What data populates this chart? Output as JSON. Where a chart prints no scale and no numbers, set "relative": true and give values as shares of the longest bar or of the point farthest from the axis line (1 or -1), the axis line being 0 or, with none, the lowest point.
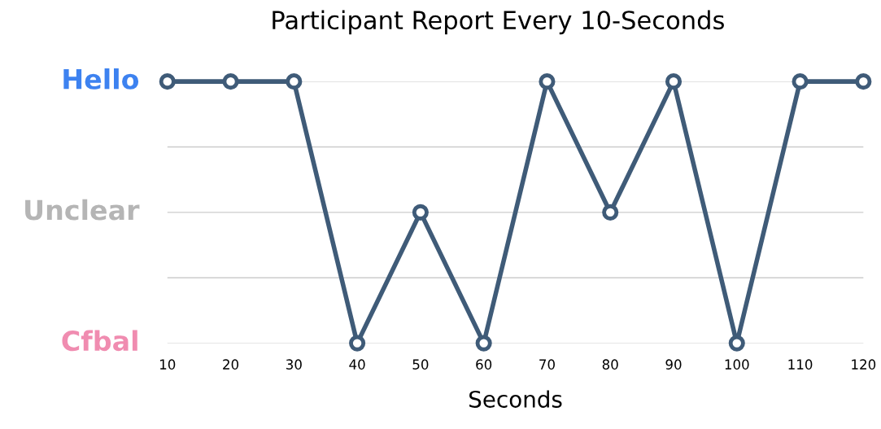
{
  "chart_data": {
    "type": "line",
    "title": "Participant Report Every 10-Seconds",
    "xlabel": "Seconds",
    "x": [
      10,
      20,
      30,
      40,
      50,
      60,
      70,
      80,
      90,
      100,
      110,
      120
    ],
    "series": [
      {
        "color": "#3f5b78",
        "values": [
          1,
          1,
          1,
          0,
          0.5,
          0,
          1,
          0.5,
          1,
          0,
          1,
          1
        ]
      }
    ],
    "relative": true,
    "xlim": [
      10,
      120
    ],
    "xticks": [
      10,
      20,
      30,
      40,
      50,
      60,
      70,
      80,
      90,
      100,
      110,
      120
    ],
    "ref_lines": [
      {
        "axis": "y",
        "value": 1,
        "label": "Hello",
        "color": "#cccccc"
      },
      {
        "axis": "y",
        "value": 0.75,
        "label": null,
        "color": "#cccccc"
      },
      {
        "axis": "y",
        "value": 0.5,
        "label": "Unclear",
        "color": "#cccccc"
      },
      {
        "axis": "y",
        "value": 0.25,
        "label": null,
        "color": "#cccccc"
      },
      {
        "axis": "y",
        "value": 0,
        "label": "Cfbal",
        "color": "#cccccc"
      }
    ],
    "marker": "circle",
    "line_style": "solid"
  }
}
